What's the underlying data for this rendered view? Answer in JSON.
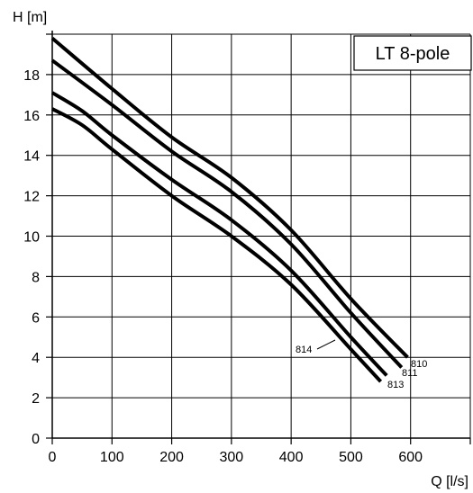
{
  "chart_data": {
    "type": "line",
    "title": "LT 8-pole",
    "xlabel": "Q [l/s]",
    "ylabel": "H [m]",
    "xlim": [
      0,
      700
    ],
    "ylim": [
      0,
      20
    ],
    "xticks": [
      0,
      100,
      200,
      300,
      400,
      500,
      600,
      700
    ],
    "xtick_labels": [
      "0",
      "100",
      "200",
      "300",
      "400",
      "500",
      "600",
      ""
    ],
    "yticks": [
      0,
      2,
      4,
      6,
      8,
      10,
      12,
      14,
      16,
      18,
      20
    ],
    "ytick_labels": [
      "0",
      "2",
      "4",
      "6",
      "8",
      "10",
      "12",
      "14",
      "16",
      "18",
      ""
    ],
    "grid": true,
    "legend": "none",
    "series": [
      {
        "name": "810",
        "x": [
          0,
          100,
          200,
          300,
          400,
          500,
          595
        ],
        "y": [
          19.8,
          17.3,
          14.9,
          12.9,
          10.3,
          6.9,
          4.0
        ]
      },
      {
        "name": "811",
        "x": [
          0,
          100,
          200,
          300,
          400,
          500,
          585
        ],
        "y": [
          18.7,
          16.5,
          14.2,
          12.2,
          9.6,
          6.2,
          3.5
        ]
      },
      {
        "name": "814",
        "x": [
          0,
          50,
          100,
          200,
          300,
          400,
          500,
          560
        ],
        "y": [
          17.1,
          16.2,
          15.0,
          12.8,
          10.8,
          8.3,
          5.0,
          3.1
        ]
      },
      {
        "name": "813",
        "x": [
          0,
          50,
          100,
          200,
          300,
          400,
          500,
          550
        ],
        "y": [
          16.3,
          15.5,
          14.3,
          12.0,
          10.0,
          7.6,
          4.4,
          2.8
        ]
      }
    ]
  }
}
